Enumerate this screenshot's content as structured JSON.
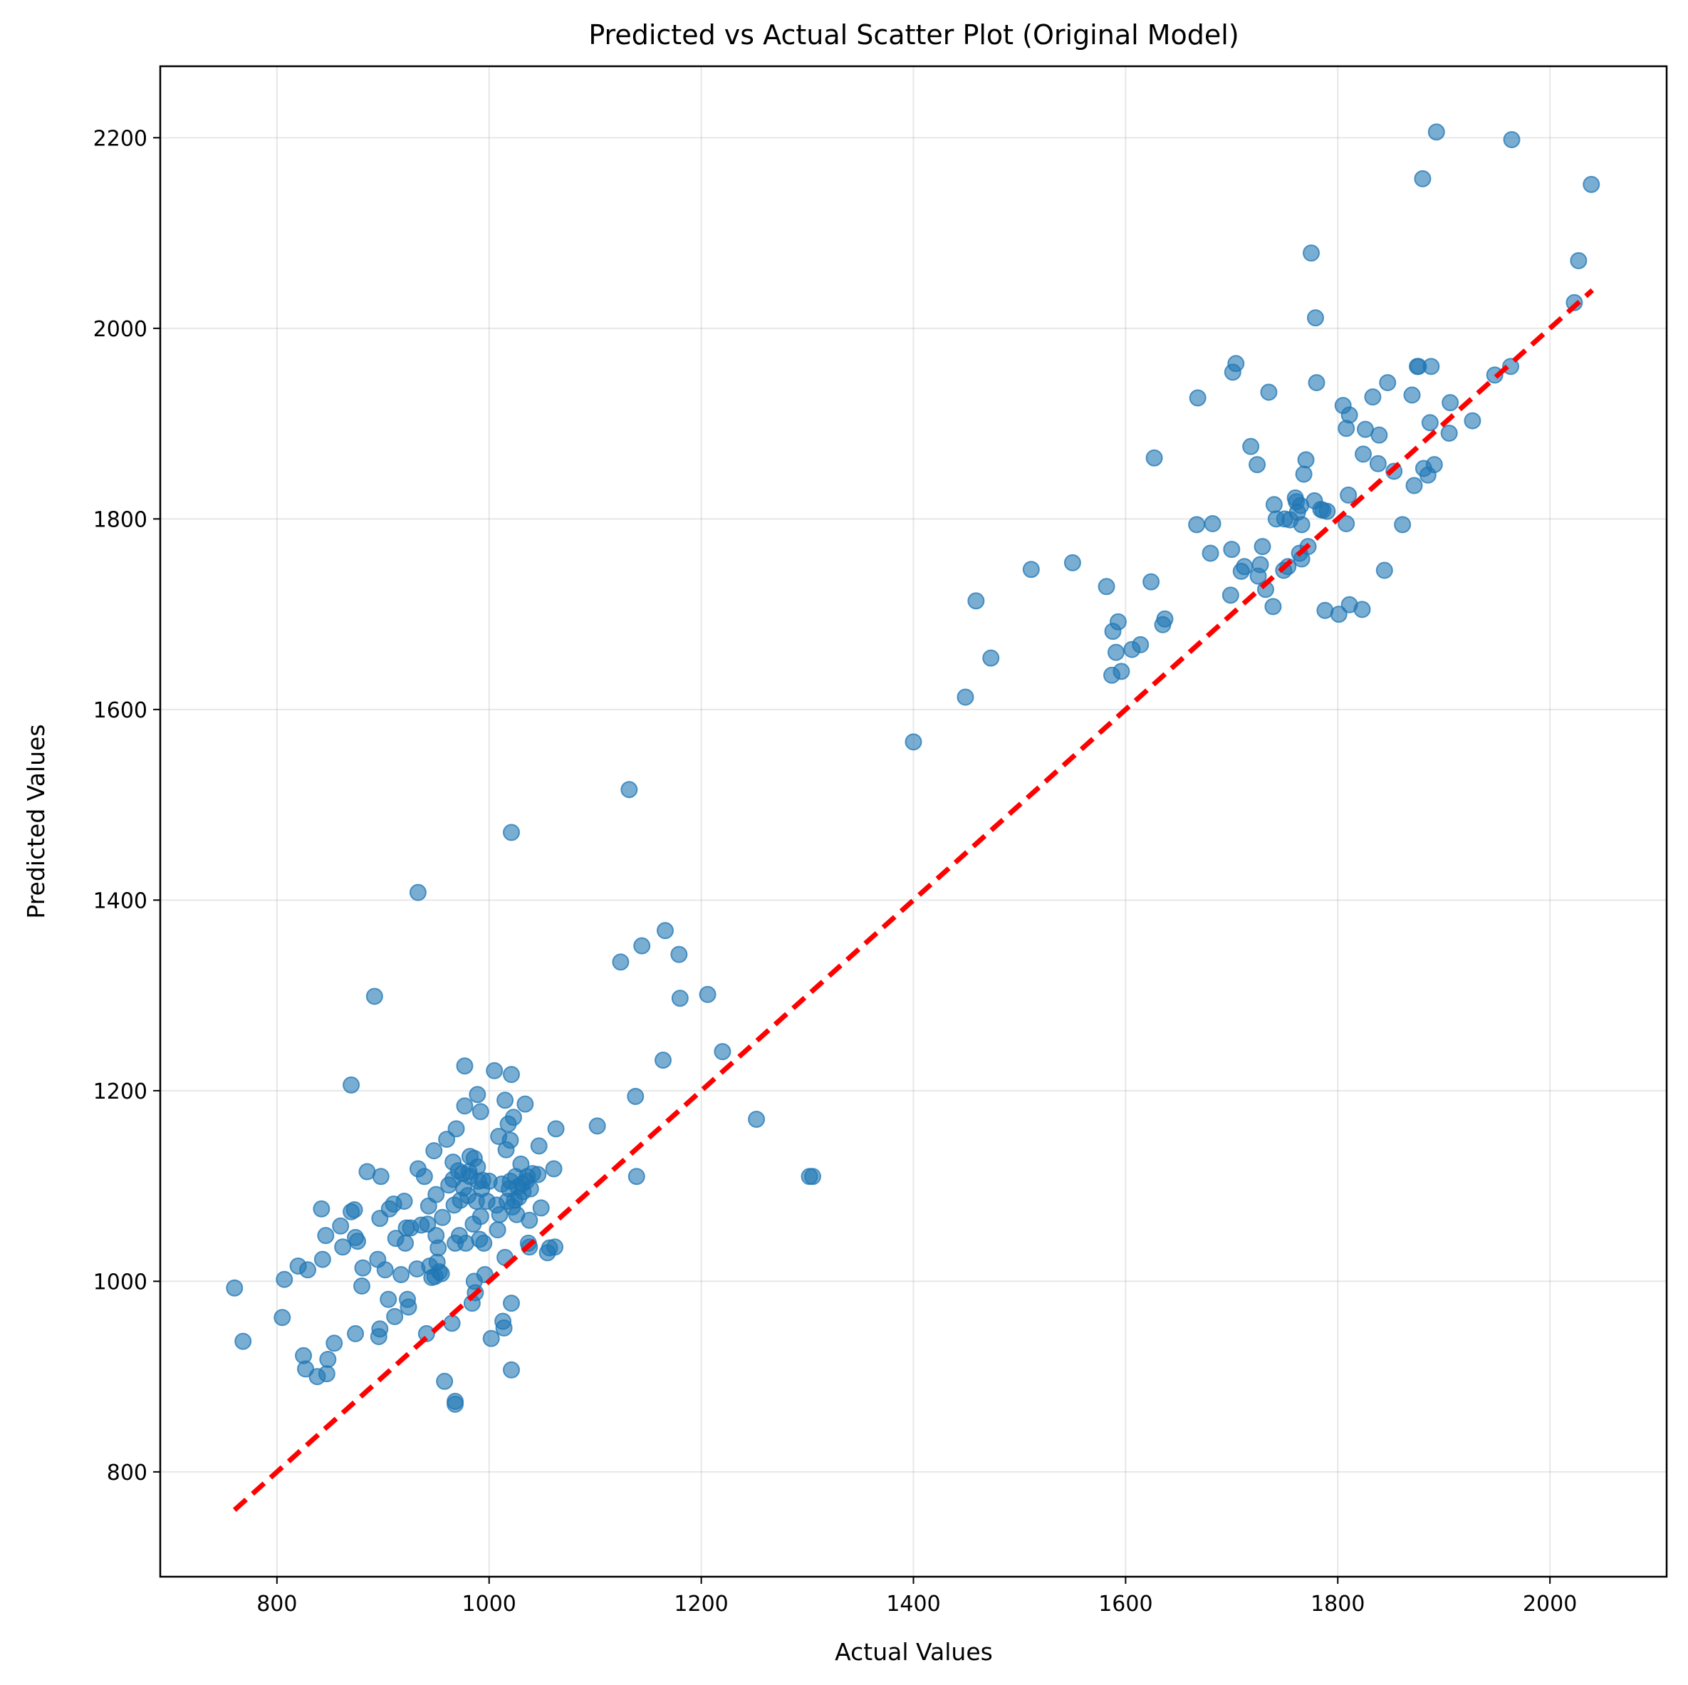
{
  "chart_data": {
    "type": "scatter",
    "title": "Predicted vs Actual Scatter Plot  (Original Model)",
    "xlabel": "Actual Values",
    "ylabel": "Predicted Values",
    "xlim": [
      690,
      2110
    ],
    "ylim": [
      690,
      2275
    ],
    "xticks": [
      800,
      1000,
      1200,
      1400,
      1600,
      1800,
      2000
    ],
    "yticks": [
      800,
      1000,
      1200,
      1400,
      1600,
      1800,
      2000,
      2200
    ],
    "grid": true,
    "point_color": "#1f77b4",
    "line_color": "#ff0000",
    "reference_line": {
      "x": [
        760,
        2040
      ],
      "y": [
        760,
        2040
      ]
    },
    "points": [
      [
        760,
        993
      ],
      [
        768,
        937
      ],
      [
        805,
        962
      ],
      [
        807,
        1002
      ],
      [
        820,
        1016
      ],
      [
        825,
        922
      ],
      [
        827,
        908
      ],
      [
        829,
        1012
      ],
      [
        838,
        900
      ],
      [
        842,
        1076
      ],
      [
        843,
        1023
      ],
      [
        846,
        1048
      ],
      [
        847,
        903
      ],
      [
        848,
        918
      ],
      [
        854,
        935
      ],
      [
        860,
        1058
      ],
      [
        862,
        1036
      ],
      [
        870,
        1206
      ],
      [
        870,
        1073
      ],
      [
        873,
        1075
      ],
      [
        874,
        945
      ],
      [
        874,
        1046
      ],
      [
        876,
        1042
      ],
      [
        880,
        995
      ],
      [
        881,
        1014
      ],
      [
        885,
        1115
      ],
      [
        892,
        1299
      ],
      [
        895,
        1023
      ],
      [
        896,
        942
      ],
      [
        897,
        950
      ],
      [
        897,
        1066
      ],
      [
        898,
        1110
      ],
      [
        902,
        1012
      ],
      [
        905,
        981
      ],
      [
        906,
        1076
      ],
      [
        910,
        1081
      ],
      [
        911,
        963
      ],
      [
        912,
        1045
      ],
      [
        917,
        1007
      ],
      [
        920,
        1084
      ],
      [
        921,
        1040
      ],
      [
        922,
        1056
      ],
      [
        923,
        981
      ],
      [
        924,
        973
      ],
      [
        926,
        1056
      ],
      [
        932,
        1013
      ],
      [
        933,
        1118
      ],
      [
        933,
        1408
      ],
      [
        936,
        1059
      ],
      [
        939,
        1110
      ],
      [
        941,
        945
      ],
      [
        942,
        1060
      ],
      [
        943,
        1079
      ],
      [
        944,
        1016
      ],
      [
        946,
        1004
      ],
      [
        948,
        1137
      ],
      [
        949,
        1005
      ],
      [
        950,
        1091
      ],
      [
        950,
        1048
      ],
      [
        951,
        1020
      ],
      [
        952,
        1035
      ],
      [
        953,
        1010
      ],
      [
        955,
        1008
      ],
      [
        956,
        1067
      ],
      [
        958,
        895
      ],
      [
        960,
        1149
      ],
      [
        962,
        1101
      ],
      [
        965,
        956
      ],
      [
        966,
        1125
      ],
      [
        966,
        1107
      ],
      [
        967,
        1080
      ],
      [
        968,
        1040
      ],
      [
        968,
        874
      ],
      [
        968,
        871
      ],
      [
        969,
        1160
      ],
      [
        971,
        1116
      ],
      [
        972,
        1048
      ],
      [
        973,
        1085
      ],
      [
        975,
        1113
      ],
      [
        976,
        1098
      ],
      [
        977,
        1226
      ],
      [
        977,
        1184
      ],
      [
        978,
        1040
      ],
      [
        980,
        1090
      ],
      [
        981,
        1115
      ],
      [
        982,
        1131
      ],
      [
        982,
        1110
      ],
      [
        984,
        977
      ],
      [
        985,
        1060
      ],
      [
        986,
        1000
      ],
      [
        986,
        1129
      ],
      [
        987,
        988
      ],
      [
        988,
        1084
      ],
      [
        989,
        1120
      ],
      [
        989,
        1196
      ],
      [
        990,
        1105
      ],
      [
        991,
        1044
      ],
      [
        992,
        1178
      ],
      [
        992,
        1068
      ],
      [
        993,
        1097
      ],
      [
        994,
        1106
      ],
      [
        995,
        1040
      ],
      [
        996,
        1007
      ],
      [
        998,
        1084
      ],
      [
        1000,
        1105
      ],
      [
        1002,
        940
      ],
      [
        1005,
        1221
      ],
      [
        1007,
        1080
      ],
      [
        1008,
        1054
      ],
      [
        1009,
        1152
      ],
      [
        1010,
        1070
      ],
      [
        1012,
        1102
      ],
      [
        1013,
        958
      ],
      [
        1014,
        951
      ],
      [
        1015,
        1025
      ],
      [
        1015,
        1190
      ],
      [
        1016,
        1138
      ],
      [
        1017,
        1084
      ],
      [
        1018,
        1165
      ],
      [
        1019,
        1097
      ],
      [
        1020,
        1105
      ],
      [
        1020,
        1148
      ],
      [
        1021,
        977
      ],
      [
        1021,
        1217
      ],
      [
        1021,
        907
      ],
      [
        1021,
        1471
      ],
      [
        1022,
        1078
      ],
      [
        1023,
        1172
      ],
      [
        1024,
        1085
      ],
      [
        1025,
        1110
      ],
      [
        1026,
        1070
      ],
      [
        1027,
        1099
      ],
      [
        1028,
        1088
      ],
      [
        1030,
        1123
      ],
      [
        1031,
        1102
      ],
      [
        1032,
        1094
      ],
      [
        1034,
        1186
      ],
      [
        1035,
        1105
      ],
      [
        1036,
        1110
      ],
      [
        1037,
        1040
      ],
      [
        1038,
        1064
      ],
      [
        1038,
        1036
      ],
      [
        1039,
        1097
      ],
      [
        1041,
        1113
      ],
      [
        1046,
        1112
      ],
      [
        1047,
        1142
      ],
      [
        1049,
        1077
      ],
      [
        1055,
        1030
      ],
      [
        1057,
        1035
      ],
      [
        1061,
        1118
      ],
      [
        1062,
        1036
      ],
      [
        1063,
        1160
      ],
      [
        1102,
        1163
      ],
      [
        1124,
        1335
      ],
      [
        1132,
        1516
      ],
      [
        1138,
        1194
      ],
      [
        1139,
        1110
      ],
      [
        1144,
        1352
      ],
      [
        1164,
        1232
      ],
      [
        1166,
        1368
      ],
      [
        1179,
        1343
      ],
      [
        1180,
        1297
      ],
      [
        1206,
        1301
      ],
      [
        1220,
        1241
      ],
      [
        1252,
        1170
      ],
      [
        1302,
        1110
      ],
      [
        1305,
        1110
      ],
      [
        1400,
        1566
      ],
      [
        1449,
        1613
      ],
      [
        1459,
        1714
      ],
      [
        1473,
        1654
      ],
      [
        1511,
        1747
      ],
      [
        1550,
        1754
      ],
      [
        1582,
        1729
      ],
      [
        1587,
        1636
      ],
      [
        1588,
        1682
      ],
      [
        1591,
        1660
      ],
      [
        1593,
        1692
      ],
      [
        1596,
        1640
      ],
      [
        1606,
        1663
      ],
      [
        1614,
        1668
      ],
      [
        1624,
        1734
      ],
      [
        1627,
        1864
      ],
      [
        1635,
        1689
      ],
      [
        1637,
        1695
      ],
      [
        1667,
        1794
      ],
      [
        1668,
        1927
      ],
      [
        1680,
        1764
      ],
      [
        1682,
        1795
      ],
      [
        1699,
        1720
      ],
      [
        1700,
        1768
      ],
      [
        1701,
        1954
      ],
      [
        1704,
        1963
      ],
      [
        1709,
        1745
      ],
      [
        1712,
        1750
      ],
      [
        1718,
        1876
      ],
      [
        1724,
        1857
      ],
      [
        1725,
        1740
      ],
      [
        1727,
        1752
      ],
      [
        1729,
        1771
      ],
      [
        1732,
        1726
      ],
      [
        1735,
        1933
      ],
      [
        1739,
        1708
      ],
      [
        1740,
        1815
      ],
      [
        1742,
        1800
      ],
      [
        1749,
        1746
      ],
      [
        1750,
        1800
      ],
      [
        1753,
        1750
      ],
      [
        1755,
        1799
      ],
      [
        1760,
        1822
      ],
      [
        1761,
        1818
      ],
      [
        1762,
        1807
      ],
      [
        1764,
        1764
      ],
      [
        1765,
        1814
      ],
      [
        1766,
        1794
      ],
      [
        1766,
        1758
      ],
      [
        1768,
        1847
      ],
      [
        1770,
        1862
      ],
      [
        1772,
        1771
      ],
      [
        1775,
        2079
      ],
      [
        1778,
        1819
      ],
      [
        1779,
        2011
      ],
      [
        1780,
        1943
      ],
      [
        1784,
        1810
      ],
      [
        1786,
        1809
      ],
      [
        1788,
        1704
      ],
      [
        1790,
        1808
      ],
      [
        1801,
        1700
      ],
      [
        1805,
        1919
      ],
      [
        1808,
        1895
      ],
      [
        1808,
        1795
      ],
      [
        1810,
        1825
      ],
      [
        1811,
        1710
      ],
      [
        1811,
        1909
      ],
      [
        1823,
        1705
      ],
      [
        1824,
        1868
      ],
      [
        1826,
        1894
      ],
      [
        1833,
        1928
      ],
      [
        1838,
        1858
      ],
      [
        1839,
        1888
      ],
      [
        1844,
        1746
      ],
      [
        1847,
        1943
      ],
      [
        1853,
        1850
      ],
      [
        1861,
        1794
      ],
      [
        1870,
        1930
      ],
      [
        1872,
        1835
      ],
      [
        1875,
        1960
      ],
      [
        1876,
        1960
      ],
      [
        1880,
        2157
      ],
      [
        1881,
        1853
      ],
      [
        1885,
        1846
      ],
      [
        1887,
        1901
      ],
      [
        1888,
        1960
      ],
      [
        1891,
        1857
      ],
      [
        1893,
        2206
      ],
      [
        1905,
        1890
      ],
      [
        1906,
        1922
      ],
      [
        1927,
        1903
      ],
      [
        1948,
        1951
      ],
      [
        1963,
        1960
      ],
      [
        1964,
        2198
      ],
      [
        2023,
        2027
      ],
      [
        2027,
        2071
      ],
      [
        2039,
        2151
      ]
    ]
  }
}
